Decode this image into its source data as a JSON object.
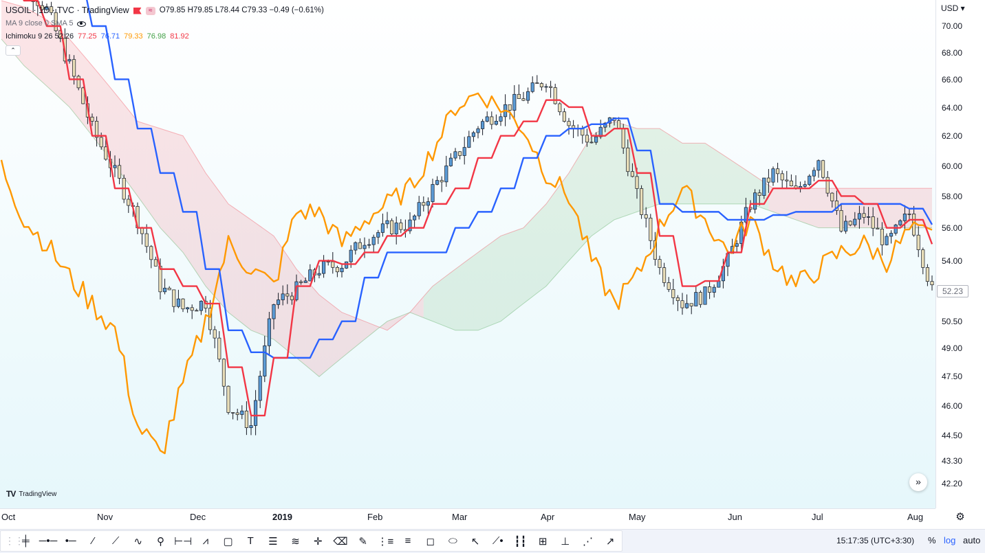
{
  "legend": {
    "symbol": "USOIL · 1D · TVC · TradingView",
    "ohlc": "O79.85 H79.85 L78.44 C79.33 −0.49 (−0.61%)",
    "ma": "MA 9 close 0 SMA 5",
    "ichimoku": {
      "label": "Ichimoku 9 26 52 26",
      "values": [
        {
          "text": "77.25",
          "color": "#f23645"
        },
        {
          "text": "76.71",
          "color": "#2962ff"
        },
        {
          "text": "79.33",
          "color": "#ff9800"
        },
        {
          "text": "76.98",
          "color": "#43a047"
        },
        {
          "text": "81.92",
          "color": "#f23645"
        }
      ]
    },
    "wave_icon": "≈",
    "collapse_icon": "⌃"
  },
  "price_axis": {
    "currency": "USD ▾",
    "ticks": [
      "70.00",
      "68.00",
      "66.00",
      "64.00",
      "62.00",
      "60.00",
      "58.00",
      "56.00",
      "54.00",
      "52.00",
      "50.50",
      "49.00",
      "47.50",
      "46.00",
      "44.50",
      "43.30",
      "42.20"
    ],
    "current_price": "52.23"
  },
  "time_axis": {
    "labels": [
      {
        "text": "Oct",
        "bold": false
      },
      {
        "text": "Nov",
        "bold": false
      },
      {
        "text": "Dec",
        "bold": false
      },
      {
        "text": "2019",
        "bold": true
      },
      {
        "text": "Feb",
        "bold": false
      },
      {
        "text": "Mar",
        "bold": false
      },
      {
        "text": "Apr",
        "bold": false
      },
      {
        "text": "May",
        "bold": false
      },
      {
        "text": "Jun",
        "bold": false
      },
      {
        "text": "Jul",
        "bold": false
      },
      {
        "text": "Aug",
        "bold": false
      }
    ]
  },
  "logo_text": "TradingView",
  "logo_mark": "TV",
  "scroll_icon": "»",
  "settings_icon": "⚙",
  "status_bar": {
    "time": "15:17:35 (UTC+3:30)",
    "percent": "%",
    "log": "log",
    "auto": "auto"
  },
  "toolbar": {
    "grip": "⋮⋮",
    "tools": [
      {
        "name": "crosshair-tool-icon",
        "glyph": "╪"
      },
      {
        "name": "horizontal-line-icon",
        "glyph": "─•─"
      },
      {
        "name": "horizontal-ray-icon",
        "glyph": "•─"
      },
      {
        "name": "trend-line-icon",
        "glyph": "⁄"
      },
      {
        "name": "ray-icon",
        "glyph": "⟋"
      },
      {
        "name": "path-icon",
        "glyph": "∿"
      },
      {
        "name": "pin-icon",
        "glyph": "⚲"
      },
      {
        "name": "date-range-icon",
        "glyph": "⊢⊣"
      },
      {
        "name": "zigzag-icon",
        "glyph": "⩘"
      },
      {
        "name": "rectangle-icon",
        "glyph": "▢"
      },
      {
        "name": "text-icon",
        "glyph": "T"
      },
      {
        "name": "pitchfork-icon",
        "glyph": "☰"
      },
      {
        "name": "channel-icon",
        "glyph": "≋"
      },
      {
        "name": "cross-cursor-icon",
        "glyph": "✛"
      },
      {
        "name": "eraser-icon",
        "glyph": "⌫"
      },
      {
        "name": "brush-icon",
        "glyph": "✎"
      },
      {
        "name": "regression-icon",
        "glyph": "⋮≡"
      },
      {
        "name": "fib-icon",
        "glyph": "≡"
      },
      {
        "name": "callout-icon",
        "glyph": "◻"
      },
      {
        "name": "ellipse-icon",
        "glyph": "⬭"
      },
      {
        "name": "arrow-cursor-icon",
        "glyph": "↖"
      },
      {
        "name": "forecast-icon",
        "glyph": "⟋•"
      },
      {
        "name": "bars-pattern-icon",
        "glyph": "┇┇"
      },
      {
        "name": "measure-icon",
        "glyph": "⊞"
      },
      {
        "name": "long-position-icon",
        "glyph": "⊥"
      },
      {
        "name": "gann-icon",
        "glyph": "⋰"
      },
      {
        "name": "line-tool-icon",
        "glyph": "↗"
      }
    ]
  },
  "colors": {
    "tenkan": "#f23645",
    "kijun": "#2962ff",
    "chikou": "#ff9800",
    "cloud_bull": "#43a047",
    "cloud_bear": "#f23645",
    "candle_up": "#5b9bd5",
    "candle_down": "#e8ddb8",
    "background_top": "#ffffff",
    "background_bottom": "#e6f7fb"
  },
  "chart_data": {
    "type": "candlestick",
    "title": "USOIL · 1D · TVC",
    "scale": "log",
    "x_range": [
      "2018-10-01",
      "2019-08-05"
    ],
    "y_range": [
      42.2,
      70.0
    ],
    "grid": false,
    "months": [
      "Oct",
      "Nov",
      "Dec",
      "Jan",
      "Feb",
      "Mar",
      "Apr",
      "May",
      "Jun",
      "Jul",
      "Aug"
    ],
    "close_weekly": [
      74.2,
      73.3,
      71.3,
      67.0,
      62.5,
      59.5,
      56.5,
      52.5,
      51.2,
      51.6,
      46.0,
      45.0,
      51.5,
      52.3,
      53.5,
      53.8,
      55.3,
      56.0,
      56.2,
      58.5,
      60.5,
      62.7,
      63.8,
      64.7,
      66.0,
      62.8,
      61.6,
      63.3,
      58.0,
      53.5,
      51.5,
      52.0,
      54.0,
      57.5,
      59.5,
      58.2,
      60.5,
      55.8,
      56.8,
      55.0,
      56.9,
      52.2
    ],
    "tenkan_weekly": [
      73.5,
      72.0,
      70.0,
      66.0,
      62.0,
      58.5,
      56.0,
      53.5,
      52.5,
      51.5,
      48.0,
      45.5,
      48.5,
      52.5,
      54.0,
      53.8,
      54.5,
      55.5,
      56.0,
      57.5,
      58.5,
      60.5,
      62.0,
      63.0,
      64.5,
      64.0,
      62.0,
      62.5,
      59.5,
      55.5,
      52.5,
      52.8,
      54.5,
      57.5,
      58.5,
      58.5,
      59.0,
      58.0,
      57.5,
      56.0,
      56.5,
      55.0
    ],
    "kijun_weekly": [
      78.5,
      78.0,
      76.5,
      73.5,
      70.0,
      66.0,
      62.5,
      59.5,
      57.0,
      53.5,
      50.0,
      48.8,
      48.5,
      48.5,
      49.5,
      50.5,
      53.0,
      54.5,
      54.5,
      54.5,
      56.0,
      57.0,
      58.5,
      60.5,
      62.0,
      62.5,
      62.8,
      63.2,
      61.0,
      57.5,
      57.0,
      57.0,
      56.5,
      56.5,
      56.8,
      57.0,
      57.0,
      57.5,
      57.5,
      57.5,
      57.2,
      56.2
    ],
    "chikou_weekly": [
      60.0,
      56.5,
      55.0,
      53.0,
      51.5,
      50.0,
      45.0,
      43.5,
      47.0,
      50.5,
      55.0,
      53.5,
      52.5,
      57.0,
      57.0,
      55.0,
      56.5,
      57.5,
      58.5,
      61.0,
      64.0,
      65.0,
      64.0,
      62.5,
      59.5,
      58.0,
      54.0,
      51.5,
      53.0,
      56.0,
      58.5,
      56.5,
      54.5,
      56.5,
      54.0,
      52.5,
      53.5,
      54.5,
      55.0,
      54.0,
      55.8,
      55.5
    ],
    "cloud_upper_weekly": [
      72.0,
      71.5,
      70.5,
      69.0,
      67.0,
      65.0,
      63.0,
      62.5,
      62.0,
      59.5,
      57.5,
      56.5,
      55.5,
      53.5,
      52.0,
      51.0,
      50.5,
      50.0,
      51.0,
      52.5,
      53.5,
      54.5,
      55.5,
      56.0,
      57.5,
      59.5,
      62.0,
      63.0,
      62.5,
      62.5,
      61.5,
      61.5,
      60.5,
      59.5,
      58.5,
      58.5,
      58.5,
      58.5,
      58.5,
      58.5,
      58.5,
      58.5
    ],
    "cloud_lower_weekly": [
      69.0,
      67.0,
      65.5,
      64.0,
      62.0,
      60.0,
      58.0,
      56.0,
      54.5,
      52.5,
      51.0,
      50.0,
      49.5,
      48.5,
      47.5,
      48.5,
      49.5,
      50.5,
      51.0,
      50.5,
      50.0,
      50.0,
      50.5,
      51.5,
      52.5,
      54.0,
      55.5,
      56.5,
      57.0,
      57.5,
      57.5,
      57.5,
      57.5,
      57.5,
      57.0,
      56.5,
      56.0,
      56.0,
      56.0,
      56.0,
      56.0,
      56.0
    ]
  }
}
